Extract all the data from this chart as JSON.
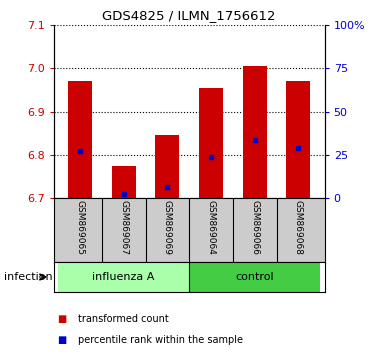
{
  "title": "GDS4825 / ILMN_1756612",
  "categories": [
    "GSM869065",
    "GSM869067",
    "GSM869069",
    "GSM869064",
    "GSM869066",
    "GSM869068"
  ],
  "red_tops": [
    6.97,
    6.775,
    6.845,
    6.955,
    7.005,
    6.97
  ],
  "blue_markers": [
    6.81,
    6.71,
    6.725,
    6.795,
    6.835,
    6.815
  ],
  "bar_bottom": 6.7,
  "ylim": [
    6.7,
    7.1
  ],
  "yticks_left": [
    6.7,
    6.8,
    6.9,
    7.0,
    7.1
  ],
  "right_tick_labels": [
    "0",
    "25",
    "50",
    "75",
    "100%"
  ],
  "groups": [
    {
      "label": "influenza A",
      "indices": [
        0,
        1,
        2
      ],
      "color": "#aaffaa"
    },
    {
      "label": "control",
      "indices": [
        3,
        4,
        5
      ],
      "color": "#44cc44"
    }
  ],
  "group_label": "infection",
  "bar_color": "#cc0000",
  "blue_color": "#0000cc",
  "background_color": "#ffffff",
  "bar_width": 0.55,
  "tick_color_left": "#cc0000",
  "tick_color_right": "#0000cc",
  "legend_red_label": "transformed count",
  "legend_blue_label": "percentile rank within the sample",
  "label_area_color": "#cccccc",
  "spine_color": "#000000"
}
